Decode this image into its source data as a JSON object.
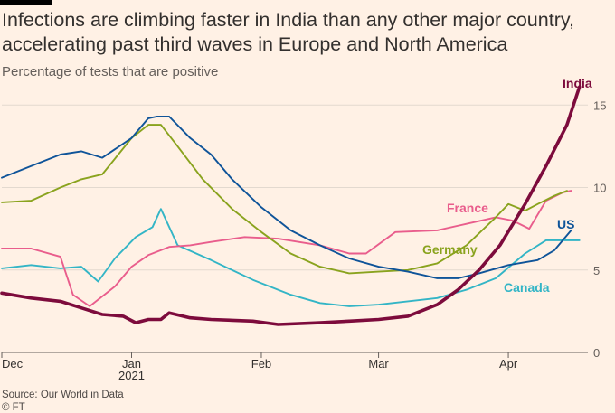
{
  "header": {
    "title": "Infections are climbing faster in India than any other major country, accelerating past third waves in Europe and North America",
    "subtitle": "Percentage of tests that are positive"
  },
  "footer": {
    "source": "Source: Our World in Data",
    "credit": "© FT"
  },
  "chart_data": {
    "type": "line",
    "title": "Infections are climbing faster in India than any other major country, accelerating past third waves in Europe and North America",
    "subtitle": "Percentage of tests that are positive",
    "xlabel": "",
    "ylabel": "",
    "ylim": [
      0,
      16
    ],
    "yticks": [
      0,
      5,
      10,
      15
    ],
    "xlim": [
      "2020-12-01",
      "2021-04-20"
    ],
    "xticks": [
      {
        "date": "2020-12-01",
        "label": "Dec",
        "sublabel": ""
      },
      {
        "date": "2021-01-01",
        "label": "Jan",
        "sublabel": "2021"
      },
      {
        "date": "2021-02-01",
        "label": "Feb",
        "sublabel": ""
      },
      {
        "date": "2021-03-01",
        "label": "Mar",
        "sublabel": ""
      },
      {
        "date": "2021-04-01",
        "label": "Apr",
        "sublabel": ""
      }
    ],
    "grid": true,
    "legend": "direct labels",
    "series": [
      {
        "name": "India",
        "color": "#7d0b3c",
        "x": [
          "2020-12-01",
          "2020-12-08",
          "2020-12-15",
          "2020-12-20",
          "2020-12-25",
          "2020-12-30",
          "2021-01-02",
          "2021-01-05",
          "2021-01-08",
          "2021-01-10",
          "2021-01-15",
          "2021-01-20",
          "2021-01-30",
          "2021-02-05",
          "2021-02-15",
          "2021-02-22",
          "2021-03-01",
          "2021-03-08",
          "2021-03-15",
          "2021-03-20",
          "2021-03-25",
          "2021-03-30",
          "2021-04-05",
          "2021-04-10",
          "2021-04-15",
          "2021-04-18"
        ],
        "values": [
          3.6,
          3.3,
          3.1,
          2.7,
          2.3,
          2.2,
          1.8,
          2.0,
          2.0,
          2.4,
          2.1,
          2.0,
          1.9,
          1.7,
          1.8,
          1.9,
          2.0,
          2.2,
          2.9,
          3.8,
          5.0,
          6.5,
          9.0,
          11.3,
          13.8,
          16.1
        ]
      },
      {
        "name": "US",
        "color": "#0f5499",
        "x": [
          "2020-12-01",
          "2020-12-08",
          "2020-12-15",
          "2020-12-20",
          "2020-12-25",
          "2021-01-01",
          "2021-01-05",
          "2021-01-07",
          "2021-01-10",
          "2021-01-15",
          "2021-01-20",
          "2021-01-25",
          "2021-02-01",
          "2021-02-08",
          "2021-02-15",
          "2021-02-22",
          "2021-03-01",
          "2021-03-08",
          "2021-03-15",
          "2021-03-20",
          "2021-03-25",
          "2021-04-01",
          "2021-04-08",
          "2021-04-12",
          "2021-04-16"
        ],
        "values": [
          10.6,
          11.3,
          12.0,
          12.2,
          11.8,
          13.0,
          14.2,
          14.3,
          14.3,
          13.0,
          12.0,
          10.5,
          8.8,
          7.4,
          6.5,
          5.7,
          5.2,
          4.9,
          4.5,
          4.5,
          4.8,
          5.3,
          5.6,
          6.2,
          7.4
        ]
      },
      {
        "name": "Germany",
        "color": "#8aa31e",
        "x": [
          "2020-12-01",
          "2020-12-08",
          "2020-12-15",
          "2020-12-20",
          "2020-12-25",
          "2021-01-01",
          "2021-01-05",
          "2021-01-08",
          "2021-01-12",
          "2021-01-18",
          "2021-01-25",
          "2021-02-01",
          "2021-02-08",
          "2021-02-15",
          "2021-02-22",
          "2021-03-01",
          "2021-03-08",
          "2021-03-15",
          "2021-03-22",
          "2021-03-29",
          "2021-04-01",
          "2021-04-05",
          "2021-04-08",
          "2021-04-12",
          "2021-04-15"
        ],
        "values": [
          9.1,
          9.2,
          10.0,
          10.5,
          10.8,
          13.0,
          13.8,
          13.8,
          12.5,
          10.5,
          8.7,
          7.3,
          6.0,
          5.2,
          4.8,
          4.9,
          5.0,
          5.4,
          6.5,
          8.2,
          9.0,
          8.6,
          9.0,
          9.5,
          9.8
        ]
      },
      {
        "name": "France",
        "color": "#e95d8c",
        "x": [
          "2020-12-01",
          "2020-12-08",
          "2020-12-15",
          "2020-12-18",
          "2020-12-22",
          "2020-12-28",
          "2021-01-01",
          "2021-01-05",
          "2021-01-10",
          "2021-01-15",
          "2021-01-20",
          "2021-01-28",
          "2021-02-05",
          "2021-02-15",
          "2021-02-22",
          "2021-02-26",
          "2021-03-05",
          "2021-03-15",
          "2021-03-22",
          "2021-03-29",
          "2021-04-02",
          "2021-04-06",
          "2021-04-10",
          "2021-04-14",
          "2021-04-16"
        ],
        "values": [
          6.3,
          6.3,
          5.8,
          3.5,
          2.8,
          4.0,
          5.2,
          5.9,
          6.4,
          6.5,
          6.7,
          7.0,
          6.9,
          6.5,
          6.0,
          6.0,
          7.3,
          7.4,
          7.8,
          8.2,
          8.0,
          7.5,
          9.2,
          9.7,
          9.8
        ]
      },
      {
        "name": "Canada",
        "color": "#33b5c6",
        "x": [
          "2020-12-01",
          "2020-12-08",
          "2020-12-15",
          "2020-12-20",
          "2020-12-24",
          "2020-12-28",
          "2021-01-02",
          "2021-01-06",
          "2021-01-08",
          "2021-01-12",
          "2021-01-20",
          "2021-01-30",
          "2021-02-08",
          "2021-02-15",
          "2021-02-22",
          "2021-03-01",
          "2021-03-08",
          "2021-03-15",
          "2021-03-22",
          "2021-03-29",
          "2021-04-05",
          "2021-04-10",
          "2021-04-18"
        ],
        "values": [
          5.1,
          5.3,
          5.1,
          5.2,
          4.3,
          5.7,
          7.0,
          7.6,
          8.7,
          6.5,
          5.6,
          4.4,
          3.5,
          3.0,
          2.8,
          2.9,
          3.1,
          3.3,
          3.8,
          4.5,
          6.0,
          6.8,
          6.8
        ]
      }
    ],
    "annotations": [
      {
        "text": "India",
        "series": "India"
      },
      {
        "text": "US",
        "series": "US"
      },
      {
        "text": "France",
        "series": "France"
      },
      {
        "text": "Germany",
        "series": "Germany"
      },
      {
        "text": "Canada",
        "series": "Canada"
      }
    ]
  }
}
